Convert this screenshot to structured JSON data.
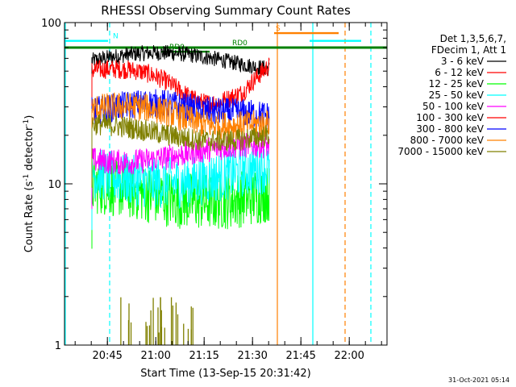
{
  "chart_data": {
    "type": "line",
    "title": "RHESSI Observing Summary Count Rates",
    "xlabel": "Start Time (13-Sep-15 20:31:42)",
    "ylabel_main": "Count Rate (s",
    "ylabel_sup1": "-1",
    "ylabel_mid": " detector",
    "ylabel_sup2": "-1",
    "ylabel_end": ")",
    "y_scale": "log",
    "ylim": [
      1,
      100
    ],
    "xlim_minutes": [
      0,
      100
    ],
    "y_ticks": [
      "1",
      "10",
      "100"
    ],
    "x_ticks": [
      {
        "label": "20:45",
        "t": 13.3
      },
      {
        "label": "21:00",
        "t": 28.3
      },
      {
        "label": "21:15",
        "t": 43.3
      },
      {
        "label": "21:30",
        "t": 58.3
      },
      {
        "label": "21:45",
        "t": 73.3
      },
      {
        "label": "22:00",
        "t": 88.3
      }
    ],
    "legend_header": [
      "Det 1,3,5,6,7,",
      "FDecim 1, Att 1"
    ],
    "series": [
      {
        "name": "3 - 6 keV",
        "color": "#000000",
        "level": 58,
        "jitter": 0.05,
        "dip": 0
      },
      {
        "name": "6 - 12 keV",
        "color": "#ff0000",
        "level": 46,
        "jitter": 0.06,
        "dip": 0.25
      },
      {
        "name": "12 - 25 keV",
        "color": "#00ff00",
        "level": 8.8,
        "jitter": 0.18,
        "dip": 0
      },
      {
        "name": "25 - 50 keV",
        "color": "#00ffff",
        "level": 11.5,
        "jitter": 0.16,
        "dip": 0
      },
      {
        "name": "50 - 100 keV",
        "color": "#ff00ff",
        "level": 15.5,
        "jitter": 0.08,
        "dip": 0
      },
      {
        "name": "100 - 300 keV",
        "color": "#ff0000",
        "level": 0,
        "jitter": 0,
        "dip": 0
      },
      {
        "name": "300 - 800 keV",
        "color": "#0000ff",
        "level": 29,
        "jitter": 0.09,
        "dip": 0.1
      },
      {
        "name": "800 - 7000 keV",
        "color": "#ff8000",
        "level": 27,
        "jitter": 0.09,
        "dip": 0.1
      },
      {
        "name": "7000 - 15000 keV",
        "color": "#808000",
        "level": 21,
        "jitter": 0.07,
        "dip": 0
      }
    ],
    "data_interval_minutes": [
      8.5,
      63.5
    ],
    "flags": [
      {
        "label": "N",
        "color": "#00ffff",
        "t_start": 0,
        "t_end": 13.5,
        "y": 77
      },
      {
        "label": "S",
        "color": "#ff8000",
        "t_start": 65,
        "t_end": 85,
        "y": 86
      },
      {
        "label": "",
        "color": "#00ffff",
        "t_start": 76,
        "t_end": 92,
        "y": 77
      },
      {
        "label": "RD0",
        "color": "#008000",
        "t_start": 0,
        "t_end": 100,
        "y": 70
      },
      {
        "label": "RD0",
        "color": "#008000",
        "t_start": 30,
        "t_end": 45,
        "y": 66
      }
    ],
    "vertical_lines": [
      {
        "t": 0,
        "color": "#00ffff",
        "style": "solid"
      },
      {
        "t": 14,
        "color": "#00ffff",
        "style": "dashed"
      },
      {
        "t": 66,
        "color": "#ff8000",
        "style": "solid"
      },
      {
        "t": 77,
        "color": "#00ffff",
        "style": "solid"
      },
      {
        "t": 87,
        "color": "#ff8000",
        "style": "dashed"
      },
      {
        "t": 95,
        "color": "#00ffff",
        "style": "dashed"
      }
    ],
    "grid": false,
    "legend_position": "right"
  },
  "footer_date": "31-Oct-2021 05:14"
}
